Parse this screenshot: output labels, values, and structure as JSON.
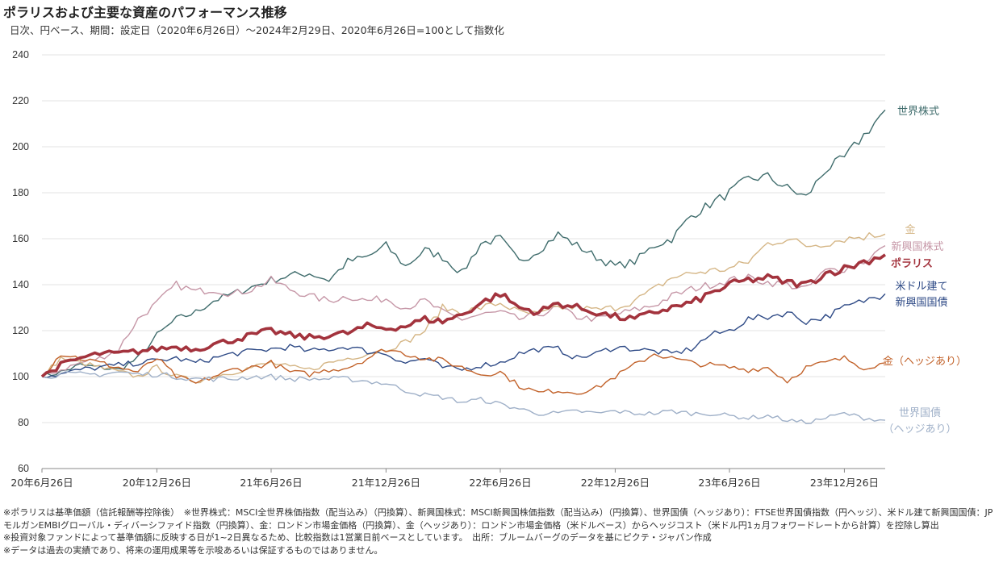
{
  "chart_data": {
    "type": "line",
    "title": "ポラリスおよび主要な資産のパフォーマンス推移",
    "subtitle": "日次、円ベース、期間：設定日（2020年6月26日）～2024年2月29日、2020年6月26日=100として指数化",
    "ylim": [
      60,
      240
    ],
    "yticks": [
      60,
      80,
      100,
      120,
      140,
      160,
      180,
      200,
      220,
      240
    ],
    "xlim": [
      "2020-06-26",
      "2024-02-29"
    ],
    "xticks": [
      {
        "date": "2020-06-26",
        "label": "20年6月26日"
      },
      {
        "date": "2020-12-26",
        "label": "20年12月26日"
      },
      {
        "date": "2021-06-26",
        "label": "21年6月26日"
      },
      {
        "date": "2021-12-26",
        "label": "21年12月26日"
      },
      {
        "date": "2022-06-26",
        "label": "22年6月26日"
      },
      {
        "date": "2022-12-26",
        "label": "22年12月26日"
      },
      {
        "date": "2023-06-26",
        "label": "23年6月26日"
      },
      {
        "date": "2023-12-26",
        "label": "23年12月26日"
      }
    ],
    "grid": "horizontal",
    "x": [
      "2020-06",
      "2020-07",
      "2020-08",
      "2020-09",
      "2020-10",
      "2020-11",
      "2020-12",
      "2021-01",
      "2021-02",
      "2021-03",
      "2021-04",
      "2021-05",
      "2021-06",
      "2021-07",
      "2021-08",
      "2021-09",
      "2021-10",
      "2021-11",
      "2021-12",
      "2022-01",
      "2022-02",
      "2022-03",
      "2022-04",
      "2022-05",
      "2022-06",
      "2022-07",
      "2022-08",
      "2022-09",
      "2022-10",
      "2022-11",
      "2022-12",
      "2023-01",
      "2023-02",
      "2023-03",
      "2023-04",
      "2023-05",
      "2023-06",
      "2023-07",
      "2023-08",
      "2023-09",
      "2023-10",
      "2023-11",
      "2023-12",
      "2024-01",
      "2024-02"
    ],
    "series": [
      {
        "name": "世界株式",
        "label_lines": [
          "世界株式"
        ],
        "color": "#3f6c6c",
        "width": 1.4,
        "values": [
          100,
          102,
          105,
          104,
          103,
          108,
          118,
          125,
          128,
          133,
          136,
          139,
          142,
          144,
          145,
          142,
          150,
          152,
          157,
          148,
          155,
          152,
          145,
          158,
          160,
          150,
          155,
          162,
          157,
          152,
          148,
          150,
          157,
          160,
          170,
          175,
          180,
          186,
          187,
          182,
          178,
          190,
          195,
          205,
          216
        ]
      },
      {
        "name": "新興国株式",
        "label_lines": [
          "新興国株式"
        ],
        "color": "#c697a7",
        "width": 1.4,
        "values": [
          100,
          103,
          106,
          108,
          112,
          125,
          132,
          140,
          137,
          138,
          136,
          138,
          142,
          138,
          135,
          133,
          135,
          133,
          134,
          130,
          133,
          128,
          125,
          127,
          128,
          125,
          127,
          130,
          126,
          125,
          127,
          129,
          131,
          135,
          138,
          140,
          142,
          143,
          141,
          140,
          138,
          146,
          147,
          150,
          157
        ]
      },
      {
        "name": "金",
        "label_lines": [
          "金"
        ],
        "color": "#d5b686",
        "width": 1.4,
        "values": [
          100,
          108,
          106,
          104,
          102,
          100,
          104,
          100,
          98,
          100,
          102,
          104,
          106,
          104,
          103,
          106,
          108,
          110,
          112,
          115,
          120,
          130,
          128,
          130,
          132,
          128,
          127,
          130,
          130,
          129,
          130,
          133,
          138,
          143,
          145,
          146,
          147,
          150,
          158,
          160,
          157,
          158,
          160,
          161,
          162
        ]
      },
      {
        "name": "米ドル建て新興国国債",
        "label_lines": [
          "米ドル建て",
          "新興国国債"
        ],
        "color": "#2e4a86",
        "width": 1.4,
        "values": [
          100,
          101,
          103,
          104,
          105,
          106,
          107,
          108,
          106,
          108,
          110,
          111,
          112,
          113,
          111,
          112,
          113,
          111,
          110,
          106,
          108,
          104,
          103,
          105,
          106,
          110,
          112,
          112,
          108,
          110,
          113,
          112,
          111,
          110,
          112,
          118,
          120,
          125,
          126,
          128,
          124,
          126,
          130,
          133,
          136
        ]
      },
      {
        "name": "金（ヘッジあり）",
        "label_lines": [
          "金（ヘッジあり）"
        ],
        "color": "#c2622a",
        "width": 1.4,
        "values": [
          100,
          110,
          108,
          106,
          104,
          102,
          108,
          100,
          97,
          100,
          103,
          104,
          106,
          102,
          101,
          103,
          104,
          108,
          112,
          110,
          108,
          107,
          104,
          101,
          102,
          96,
          93,
          94,
          93,
          95,
          100,
          105,
          110,
          108,
          106,
          105,
          104,
          103,
          104,
          98,
          104,
          106,
          108,
          104,
          106
        ]
      },
      {
        "name": "世界国債（ヘッジあり）",
        "label_lines": [
          "世界国債",
          "（ヘッジあり）"
        ],
        "color": "#9fb0c8",
        "width": 1.4,
        "values": [
          100,
          101,
          101,
          101,
          102,
          101,
          101,
          100,
          99,
          99,
          99,
          100,
          100,
          99,
          99,
          99,
          99,
          98,
          97,
          94,
          92,
          91,
          89,
          90,
          88,
          86,
          84,
          84,
          85,
          84,
          85,
          84,
          84,
          85,
          84,
          84,
          83,
          82,
          83,
          81,
          80,
          82,
          84,
          82,
          81
        ]
      },
      {
        "name": "ポラリス",
        "label_lines": [
          "ポラリス"
        ],
        "color": "#a3333d",
        "width": 3.6,
        "bold": true,
        "values": [
          100,
          105,
          108,
          110,
          110,
          111,
          112,
          113,
          112,
          114,
          116,
          118,
          120,
          118,
          117,
          118,
          119,
          122,
          121,
          122,
          125,
          124,
          127,
          132,
          136,
          130,
          128,
          132,
          130,
          128,
          126,
          125,
          128,
          130,
          132,
          136,
          140,
          142,
          143,
          141,
          140,
          145,
          147,
          150,
          153
        ]
      }
    ]
  },
  "notes": [
    "※ポラリスは基準価額（信託報酬等控除後）　※世界株式：MSCI全世界株価指数（配当込み）（円換算）、新興国株式：MSCI新興国株価指数（配当込み）（円換算）、世界国債（ヘッジあり）：FTSE世界国債指数（円ヘッジ）、米ドル建て新興国国債：JPモルガンEMBIグローバル・ディバーシファイド指数（円換算）、金：ロンドン市場金価格（円換算）、金（ヘッジあり）：ロンドン市場金価格（米ドルベース）からヘッジコスト（米ドル円1ヵ月フォワードレートから計算）を控除し算出",
    "※投資対象ファンドによって基準価額に反映する日が1~2日異なるため、比較指数は1営業日前ベースとしています。　出所：ブルームバーグのデータを基にピクテ・ジャパン作成",
    "※データは過去の実績であり、将来の運用成果等を示唆あるいは保証するものではありません。"
  ]
}
